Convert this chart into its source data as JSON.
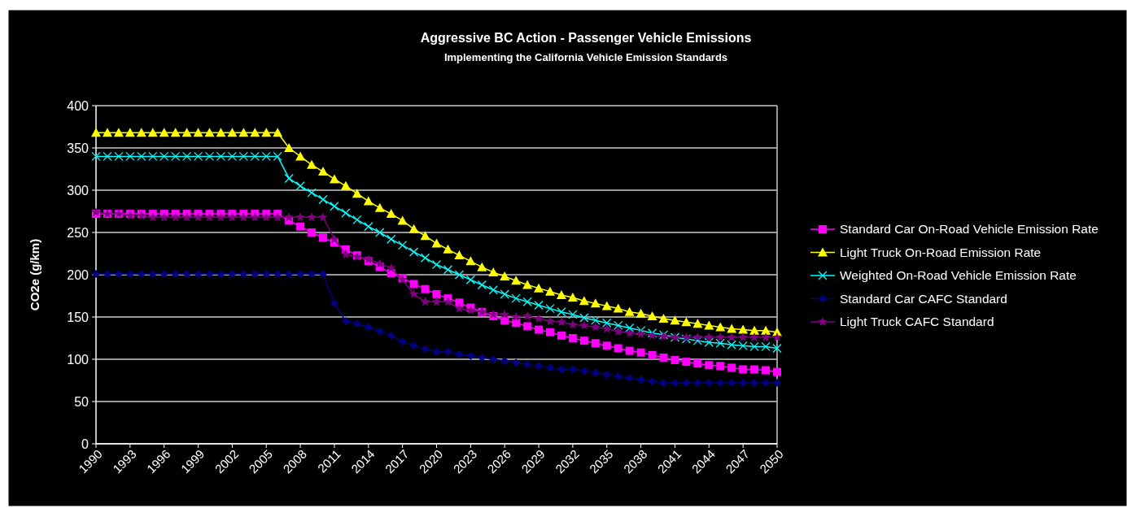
{
  "chart_data": {
    "type": "line",
    "title": "Aggressive BC Action -  Passenger Vehicle Emissions",
    "subtitle": "Implementing the California Vehicle Emission Standards",
    "ylabel": "CO2e (g/km)",
    "x": [
      1990,
      1991,
      1992,
      1993,
      1994,
      1995,
      1996,
      1997,
      1998,
      1999,
      2000,
      2001,
      2002,
      2003,
      2004,
      2005,
      2006,
      2007,
      2008,
      2009,
      2010,
      2011,
      2012,
      2013,
      2014,
      2015,
      2016,
      2017,
      2018,
      2019,
      2020,
      2021,
      2022,
      2023,
      2024,
      2025,
      2026,
      2027,
      2028,
      2029,
      2030,
      2031,
      2032,
      2033,
      2034,
      2035,
      2036,
      2037,
      2038,
      2039,
      2040,
      2041,
      2042,
      2043,
      2044,
      2045,
      2046,
      2047,
      2048,
      2049,
      2050
    ],
    "xlim": [
      1990,
      2050
    ],
    "xticks": [
      1990,
      1993,
      1996,
      1999,
      2002,
      2005,
      2008,
      2011,
      2014,
      2017,
      2020,
      2023,
      2026,
      2029,
      2032,
      2035,
      2038,
      2041,
      2044,
      2047,
      2050
    ],
    "ylim": [
      0,
      400
    ],
    "yticks": [
      0,
      50,
      100,
      150,
      200,
      250,
      300,
      350,
      400
    ],
    "grid": "y",
    "legend": "right",
    "series": [
      {
        "name": "Standard Car On-Road Vehicle Emission Rate",
        "color": "#ff00ff",
        "marker": "square",
        "values": [
          272,
          272,
          272,
          272,
          272,
          272,
          272,
          272,
          272,
          272,
          272,
          272,
          272,
          272,
          272,
          272,
          272,
          264,
          257,
          250,
          244,
          238,
          230,
          223,
          216,
          209,
          202,
          196,
          189,
          183,
          177,
          172,
          167,
          161,
          156,
          151,
          146,
          143,
          139,
          135,
          132,
          128,
          125,
          122,
          119,
          116,
          113,
          110,
          108,
          105,
          102,
          99,
          97,
          95,
          93,
          92,
          90,
          88,
          88,
          87,
          85
        ]
      },
      {
        "name": "Light Truck On-Road Emission Rate",
        "color": "#ffff00",
        "marker": "triangle",
        "values": [
          368,
          368,
          368,
          368,
          368,
          368,
          368,
          368,
          368,
          368,
          368,
          368,
          368,
          368,
          368,
          368,
          368,
          350,
          340,
          330,
          322,
          313,
          305,
          296,
          287,
          279,
          272,
          264,
          254,
          246,
          237,
          230,
          223,
          216,
          209,
          203,
          198,
          193,
          188,
          184,
          180,
          176,
          173,
          169,
          166,
          163,
          160,
          156,
          154,
          151,
          148,
          146,
          144,
          142,
          140,
          138,
          136,
          135,
          134,
          134,
          132
        ]
      },
      {
        "name": "Weighted On-Road Vehicle Emission Rate",
        "color": "#00ffff",
        "marker": "cross",
        "values": [
          340,
          340,
          340,
          340,
          340,
          340,
          340,
          340,
          340,
          340,
          340,
          340,
          340,
          340,
          340,
          340,
          340,
          314,
          305,
          297,
          289,
          281,
          273,
          265,
          257,
          250,
          242,
          235,
          227,
          220,
          212,
          206,
          200,
          194,
          188,
          182,
          177,
          172,
          168,
          164,
          160,
          156,
          153,
          149,
          146,
          143,
          140,
          137,
          134,
          131,
          129,
          126,
          124,
          122,
          120,
          119,
          117,
          116,
          115,
          115,
          113
        ]
      },
      {
        "name": "Standard Car CAFC Standard",
        "color": "#000080",
        "marker": "diamond",
        "values": [
          201,
          201,
          201,
          201,
          201,
          201,
          201,
          201,
          201,
          201,
          201,
          201,
          201,
          201,
          201,
          201,
          201,
          201,
          201,
          201,
          201,
          166,
          145,
          142,
          138,
          133,
          128,
          121,
          116,
          112,
          109,
          109,
          106,
          104,
          102,
          100,
          98,
          96,
          94,
          92,
          90,
          88,
          88,
          86,
          84,
          82,
          80,
          78,
          76,
          74,
          72,
          72,
          72,
          72,
          72,
          72,
          72,
          72,
          72,
          72,
          72
        ]
      },
      {
        "name": "Light Truck CAFC Standard",
        "color": "#800080",
        "marker": "star",
        "values": [
          274,
          272,
          272,
          270,
          270,
          268,
          268,
          268,
          268,
          268,
          268,
          268,
          268,
          268,
          268,
          268,
          268,
          268,
          268,
          268,
          268,
          242,
          224,
          221,
          218,
          213,
          208,
          194,
          177,
          168,
          168,
          168,
          160,
          158,
          156,
          153,
          153,
          150,
          151,
          148,
          145,
          144,
          141,
          140,
          138,
          136,
          133,
          131,
          130,
          128,
          127,
          126,
          126,
          126,
          126,
          126,
          126,
          126,
          126,
          126,
          126
        ]
      }
    ]
  }
}
